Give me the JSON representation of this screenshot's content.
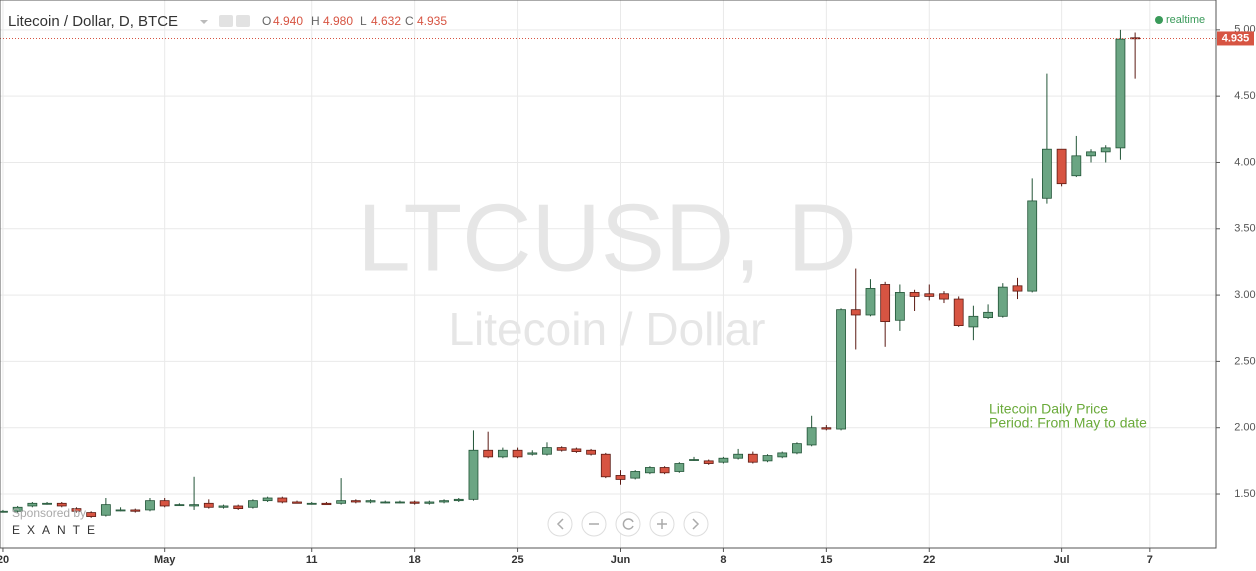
{
  "chart_data": {
    "type": "candlestick",
    "title": "Litecoin / Dollar, D, BTCE",
    "header": {
      "open_key": "O",
      "open": "4.940",
      "high_key": "H",
      "high": "4.980",
      "low_key": "L",
      "low": "4.632",
      "close_key": "C",
      "close": "4.935"
    },
    "status": "realtime",
    "watermark": "LTCUSD, D",
    "watermark_subtitle": "Litecoin / Dollar",
    "annotation": [
      "Litecoin Daily Price",
      "Period: From May to date"
    ],
    "sponsor": "Sponsored by",
    "sponsor_name": "EXANTE",
    "last_price_label": "4.935",
    "up_color": "#6ba583",
    "down_color": "#d75442",
    "grid": true,
    "xlim": [
      -0.2,
      82.5
    ],
    "xticks": [
      {
        "value": 0,
        "label": "20"
      },
      {
        "value": 11,
        "label": "May"
      },
      {
        "value": 21,
        "label": "11"
      },
      {
        "value": 28,
        "label": "18"
      },
      {
        "value": 35,
        "label": "25"
      },
      {
        "value": 42,
        "label": "Jun"
      },
      {
        "value": 49,
        "label": "8"
      },
      {
        "value": 56,
        "label": "15"
      },
      {
        "value": 63,
        "label": "22"
      },
      {
        "value": 72,
        "label": "Jul"
      },
      {
        "value": 78,
        "label": "7"
      }
    ],
    "ylim": [
      1.093,
      5.225
    ],
    "yticks": [
      {
        "value": 1.5,
        "label": "1.500"
      },
      {
        "value": 2,
        "label": "2.000"
      },
      {
        "value": 2.5,
        "label": "2.500"
      },
      {
        "value": 3,
        "label": "3.000"
      },
      {
        "value": 3.5,
        "label": "3.500"
      },
      {
        "value": 4,
        "label": "4.000"
      },
      {
        "value": 4.5,
        "label": "4.500"
      },
      {
        "value": 5,
        "label": "5.000"
      }
    ],
    "open": [
      1.37,
      1.37,
      1.41,
      1.43,
      1.43,
      1.39,
      1.36,
      1.34,
      1.38,
      1.38,
      1.38,
      1.45,
      1.42,
      1.41,
      1.43,
      1.4,
      1.41,
      1.4,
      1.45,
      1.47,
      1.44,
      1.43,
      1.43,
      1.43,
      1.45,
      1.44,
      1.44,
      1.44,
      1.44,
      1.43,
      1.44,
      1.45,
      1.46,
      1.83,
      1.78,
      1.83,
      1.8,
      1.8,
      1.85,
      1.84,
      1.83,
      1.8,
      1.64,
      1.62,
      1.66,
      1.7,
      1.67,
      1.76,
      1.75,
      1.74,
      1.77,
      1.8,
      1.75,
      1.78,
      1.81,
      1.87,
      2.0,
      1.99,
      2.89,
      2.85,
      3.08,
      2.81,
      3.02,
      3.01,
      3.01,
      2.97,
      2.76,
      2.83,
      2.84,
      3.07,
      3.03,
      3.73,
      4.1,
      3.9,
      4.05,
      4.08,
      4.11,
      4.94
    ],
    "high": [
      1.38,
      1.41,
      1.44,
      1.44,
      1.44,
      1.4,
      1.37,
      1.47,
      1.4,
      1.39,
      1.47,
      1.47,
      1.43,
      1.63,
      1.46,
      1.42,
      1.42,
      1.46,
      1.48,
      1.48,
      1.45,
      1.44,
      1.44,
      1.62,
      1.46,
      1.46,
      1.45,
      1.45,
      1.45,
      1.45,
      1.46,
      1.47,
      1.98,
      1.97,
      1.85,
      1.85,
      1.83,
      1.89,
      1.86,
      1.85,
      1.84,
      1.81,
      1.68,
      1.68,
      1.71,
      1.71,
      1.74,
      1.78,
      1.76,
      1.78,
      1.84,
      1.82,
      1.8,
      1.82,
      1.89,
      2.09,
      2.02,
      2.9,
      3.2,
      3.12,
      3.1,
      3.08,
      3.04,
      3.08,
      3.03,
      2.99,
      2.92,
      2.93,
      3.09,
      3.13,
      3.88,
      4.67,
      4.1,
      4.2,
      4.1,
      4.13,
      5.0,
      4.98
    ],
    "low": [
      1.36,
      1.36,
      1.4,
      1.42,
      1.4,
      1.36,
      1.32,
      1.33,
      1.37,
      1.36,
      1.37,
      1.4,
      1.41,
      1.38,
      1.39,
      1.39,
      1.38,
      1.39,
      1.44,
      1.43,
      1.43,
      1.42,
      1.42,
      1.42,
      1.43,
      1.43,
      1.43,
      1.43,
      1.42,
      1.42,
      1.43,
      1.44,
      1.45,
      1.77,
      1.77,
      1.77,
      1.79,
      1.79,
      1.82,
      1.81,
      1.79,
      1.62,
      1.57,
      1.61,
      1.65,
      1.65,
      1.66,
      1.75,
      1.72,
      1.73,
      1.76,
      1.73,
      1.74,
      1.77,
      1.8,
      1.86,
      1.98,
      1.98,
      2.59,
      2.84,
      2.61,
      2.73,
      2.88,
      2.96,
      2.94,
      2.76,
      2.66,
      2.82,
      2.83,
      2.97,
      3.02,
      3.69,
      3.82,
      3.89,
      4.0,
      4.0,
      4.02,
      4.632
    ],
    "close": [
      1.37,
      1.4,
      1.43,
      1.43,
      1.41,
      1.37,
      1.33,
      1.42,
      1.38,
      1.37,
      1.45,
      1.41,
      1.42,
      1.42,
      1.4,
      1.41,
      1.39,
      1.45,
      1.47,
      1.44,
      1.43,
      1.43,
      1.42,
      1.45,
      1.44,
      1.45,
      1.44,
      1.44,
      1.43,
      1.44,
      1.45,
      1.46,
      1.83,
      1.78,
      1.83,
      1.78,
      1.81,
      1.85,
      1.83,
      1.82,
      1.8,
      1.63,
      1.61,
      1.67,
      1.7,
      1.66,
      1.73,
      1.76,
      1.73,
      1.77,
      1.8,
      1.74,
      1.79,
      1.81,
      1.88,
      2.0,
      1.99,
      2.89,
      2.85,
      3.05,
      2.8,
      3.02,
      2.99,
      2.99,
      2.97,
      2.77,
      2.84,
      2.87,
      3.06,
      3.03,
      3.71,
      4.1,
      3.84,
      4.05,
      4.08,
      4.11,
      4.93,
      4.935
    ]
  }
}
